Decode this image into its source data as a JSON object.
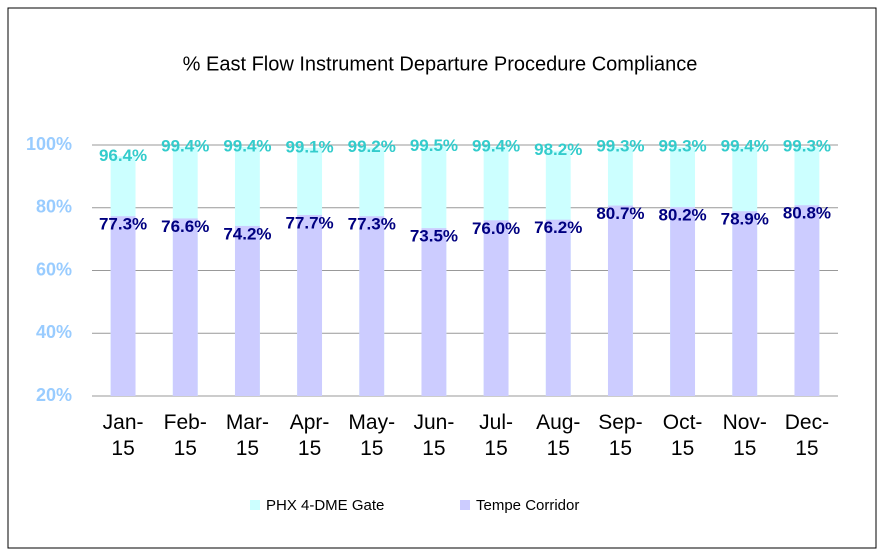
{
  "chart_data": {
    "type": "bar",
    "title": "% East Flow Instrument Departure Procedure Compliance",
    "categories": [
      "Jan-15",
      "Feb-15",
      "Mar-15",
      "Apr-15",
      "May-15",
      "Jun-15",
      "Jul-15",
      "Aug-15",
      "Sep-15",
      "Oct-15",
      "Nov-15",
      "Dec-15"
    ],
    "series": [
      {
        "name": "PHX 4-DME Gate",
        "color": "#ccffff",
        "label_color": "#33cccc",
        "values": [
          96.4,
          99.4,
          99.4,
          99.1,
          99.2,
          99.5,
          99.4,
          98.2,
          99.3,
          99.3,
          99.4,
          99.3
        ],
        "value_labels": [
          "96.4%",
          "99.4%",
          "99.4%",
          "99.1%",
          "99.2%",
          "99.5%",
          "99.4%",
          "98.2%",
          "99.3%",
          "99.3%",
          "99.4%",
          "99.3%"
        ]
      },
      {
        "name": "Tempe Corridor",
        "color": "#ccccff",
        "label_color": "#000080",
        "values": [
          77.3,
          76.6,
          74.2,
          77.7,
          77.3,
          73.5,
          76.0,
          76.2,
          80.7,
          80.2,
          78.9,
          80.8
        ],
        "value_labels": [
          "77.3%",
          "76.6%",
          "74.2%",
          "77.7%",
          "77.3%",
          "73.5%",
          "76.0%",
          "76.2%",
          "80.7%",
          "80.2%",
          "78.9%",
          "80.8%"
        ]
      }
    ],
    "ylim": [
      20,
      100
    ],
    "yticks": [
      {
        "value": 20,
        "label": "20%"
      },
      {
        "value": 40,
        "label": "40%"
      },
      {
        "value": 60,
        "label": "60%"
      },
      {
        "value": 80,
        "label": "80%"
      },
      {
        "value": 100,
        "label": "100%"
      }
    ],
    "grid": true,
    "legend": "bottom"
  }
}
